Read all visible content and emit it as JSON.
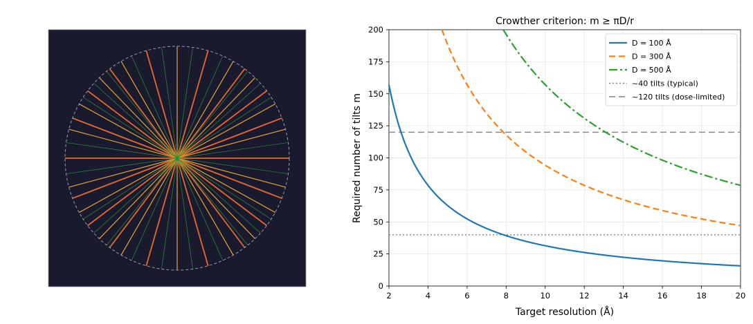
{
  "chart_data": [
    {
      "type": "diagram",
      "background": "#1a1a2e",
      "spokes": [
        {
          "angle_deg": 0,
          "color": "#e8692e"
        },
        {
          "angle_deg": 21,
          "color": "#e8692e"
        },
        {
          "angle_deg": 37,
          "color": "#e8692e"
        },
        {
          "angle_deg": 53,
          "color": "#e8692e"
        },
        {
          "angle_deg": 74,
          "color": "#e8692e"
        },
        {
          "angle_deg": 90,
          "color": "#e8a52e"
        },
        {
          "angle_deg": 15,
          "color": "#e8a52e"
        },
        {
          "angle_deg": 29,
          "color": "#e8a52e"
        },
        {
          "angle_deg": 46,
          "color": "#e8a52e"
        },
        {
          "angle_deg": 60,
          "color": "#e8a52e"
        },
        {
          "angle_deg": 8,
          "color": "#2e8b3a"
        },
        {
          "angle_deg": 33,
          "color": "#2e8b3a"
        },
        {
          "angle_deg": 42,
          "color": "#2e8b3a"
        },
        {
          "angle_deg": 51,
          "color": "#2e8b3a"
        },
        {
          "angle_deg": 66,
          "color": "#2e8b3a"
        },
        {
          "angle_deg": 82,
          "color": "#2e8b3a"
        }
      ],
      "boundary": "dashed circle"
    },
    {
      "type": "line",
      "title": "Crowther criterion: m ≥ πD/r",
      "xlabel": "Target resolution (Å)",
      "ylabel": "Required number of tilts m",
      "xlim": [
        2,
        20
      ],
      "ylim": [
        0,
        200
      ],
      "xticks": [
        "2",
        "4",
        "6",
        "8",
        "10",
        "12",
        "14",
        "16",
        "18",
        "20"
      ],
      "yticks": [
        "0",
        "25",
        "50",
        "75",
        "100",
        "125",
        "150",
        "175",
        "200"
      ],
      "grid": true,
      "legend_position": "top-right",
      "series": [
        {
          "name": "D = 100 Å",
          "D": 100,
          "color": "#1f77b4",
          "style": "solid"
        },
        {
          "name": "D = 300 Å",
          "D": 300,
          "color": "#ff7f0e",
          "style": "dashed"
        },
        {
          "name": "D = 500 Å",
          "D": 500,
          "color": "#2ca02c",
          "style": "dashdot"
        }
      ],
      "reference_lines": [
        {
          "name": "~40 tilts (typical)",
          "y": 40,
          "color": "#808080",
          "style": "dotted"
        },
        {
          "name": "~120 tilts (dose-limited)",
          "y": 120,
          "color": "#808080",
          "style": "dashed"
        }
      ]
    }
  ]
}
